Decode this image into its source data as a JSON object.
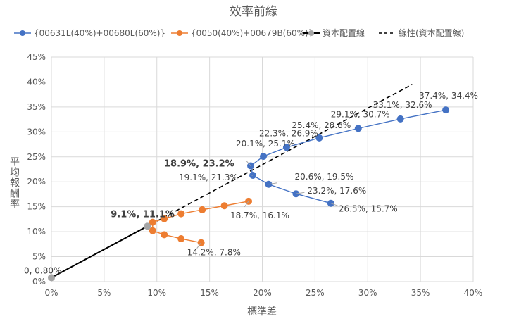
{
  "chart_data": {
    "type": "scatter",
    "title": "效率前緣",
    "xlabel": "標準差",
    "ylabel": "平均報酬率",
    "xlim": [
      0,
      40
    ],
    "ylim": [
      0,
      45
    ],
    "x_ticks": [
      "0%",
      "5%",
      "10%",
      "15%",
      "20%",
      "25%",
      "30%",
      "35%",
      "40%"
    ],
    "y_ticks": [
      "0%",
      "5%",
      "10%",
      "15%",
      "20%",
      "25%",
      "30%",
      "35%",
      "40%",
      "45%"
    ],
    "grid": true,
    "legend_position": "top",
    "series": [
      {
        "name": "{00631L(40%)+00680L(60%)}",
        "color": "#4472C4",
        "points": [
          [
            26.5,
            15.7
          ],
          [
            23.2,
            17.6
          ],
          [
            20.6,
            19.5
          ],
          [
            19.1,
            21.3
          ],
          [
            18.9,
            23.2
          ],
          [
            20.1,
            25.1
          ],
          [
            22.3,
            26.9
          ],
          [
            25.4,
            28.8
          ],
          [
            29.1,
            30.7
          ],
          [
            33.1,
            32.6
          ],
          [
            37.4,
            34.4
          ]
        ],
        "labels": [
          "26.5%, 15.7%",
          "23.2%, 17.6%",
          "20.6%, 19.5%",
          "19.1%, 21.3%",
          "18.9%, 23.2%",
          "20.1%, 25.1%",
          "22.3%, 26.9%",
          "25.4%, 28.8%",
          "29.1%, 30.7%",
          "33.1%, 32.6%",
          "37.4%, 34.4%"
        ]
      },
      {
        "name": "{0050(40%)+00679B(60%)}",
        "color": "#ED7D31",
        "points": [
          [
            14.2,
            7.8
          ],
          [
            12.3,
            8.6
          ],
          [
            10.7,
            9.4
          ],
          [
            9.6,
            10.2
          ],
          [
            9.6,
            11.9
          ],
          [
            10.7,
            12.6
          ],
          [
            12.3,
            13.6
          ],
          [
            14.3,
            14.4
          ],
          [
            16.4,
            15.2
          ],
          [
            18.7,
            16.1
          ]
        ],
        "labels": [
          "14.2%, 7.8%",
          "",
          "",
          "",
          "",
          "",
          "",
          "",
          "",
          "18.7%, 16.1%"
        ]
      },
      {
        "name": "資本配置線",
        "color": "#000000",
        "marker_color": "#A5A5A5",
        "points": [
          [
            0,
            0.8
          ],
          [
            9.1,
            11.1
          ]
        ],
        "labels": [
          "0, 0.80%",
          "9.1%, 11.1%"
        ]
      },
      {
        "name": "線性(資本配置線)",
        "color": "#000000",
        "style": "dashed",
        "trendline": "linear",
        "points": [
          [
            0,
            0.8
          ],
          [
            34.2,
            39.5
          ]
        ]
      }
    ]
  }
}
